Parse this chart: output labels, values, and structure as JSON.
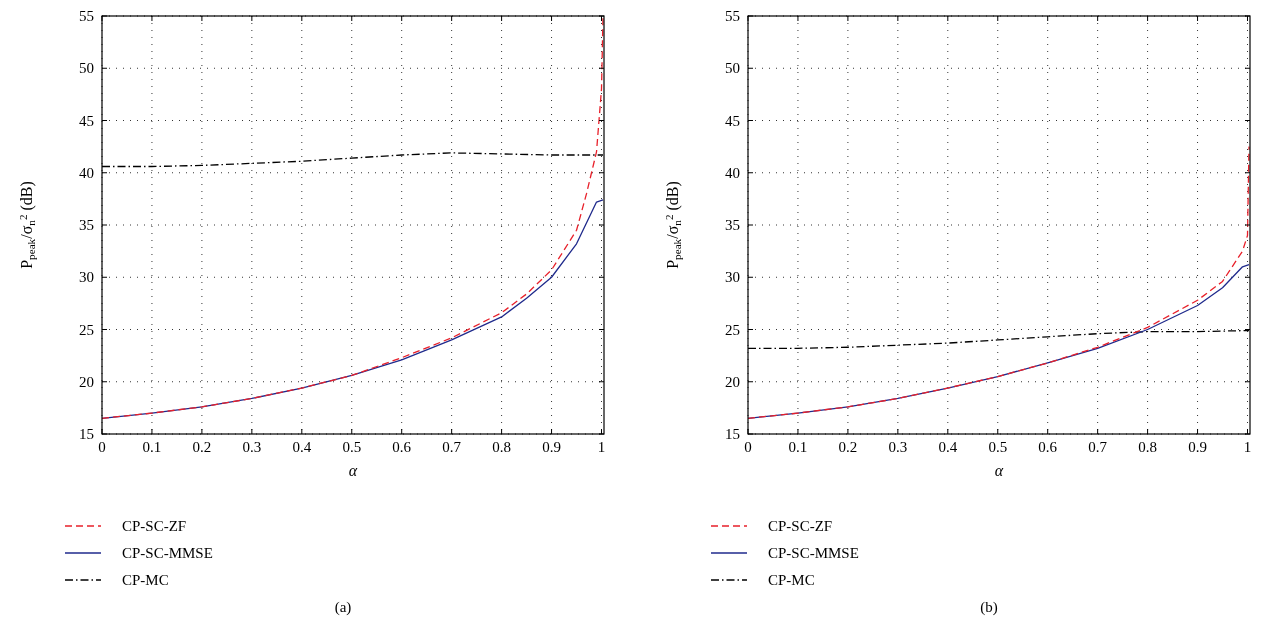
{
  "chart_data": [
    {
      "type": "line",
      "title": "(a)",
      "xlabel": "α",
      "ylabel": "P$_{peak}$/σ$_{n}$$^{2}$ (dB)",
      "xlim": [
        0,
        1.005
      ],
      "ylim": [
        15,
        55
      ],
      "xticks": [
        0,
        0.1,
        0.2,
        0.3,
        0.4,
        0.5,
        0.6,
        0.7,
        0.8,
        0.9,
        1
      ],
      "yticks": [
        15,
        20,
        25,
        30,
        35,
        40,
        45,
        50,
        55
      ],
      "grid": true,
      "legend": "bottom",
      "series": [
        {
          "name": "CP-SC-ZF",
          "color": "#e8202a",
          "line_style": "dashed",
          "x": [
            0,
            0.1,
            0.2,
            0.3,
            0.4,
            0.5,
            0.6,
            0.7,
            0.8,
            0.85,
            0.9,
            0.95,
            0.97,
            0.98,
            0.99,
            0.995,
            1.0,
            1.003
          ],
          "values": [
            16.5,
            17,
            17.6,
            18.4,
            19.4,
            20.6,
            22.3,
            24.2,
            26.6,
            28.4,
            30.7,
            34.5,
            38,
            40,
            42,
            45,
            48,
            55
          ]
        },
        {
          "name": "CP-SC-MMSE",
          "color": "#1f2a8c",
          "line_style": "solid",
          "x": [
            0,
            0.1,
            0.2,
            0.3,
            0.4,
            0.5,
            0.6,
            0.7,
            0.8,
            0.85,
            0.9,
            0.95,
            0.99,
            1.003
          ],
          "values": [
            16.5,
            17,
            17.6,
            18.4,
            19.4,
            20.6,
            22.1,
            24,
            26.2,
            28,
            30,
            33.2,
            37.2,
            37.4
          ]
        },
        {
          "name": "CP-MC",
          "color": "#000000",
          "line_style": "dashdot",
          "x": [
            0,
            0.1,
            0.2,
            0.3,
            0.4,
            0.5,
            0.6,
            0.7,
            0.8,
            0.9,
            1.003
          ],
          "values": [
            40.6,
            40.6,
            40.7,
            40.9,
            41.1,
            41.4,
            41.7,
            41.9,
            41.8,
            41.7,
            41.7
          ]
        }
      ]
    },
    {
      "type": "line",
      "title": "(b)",
      "xlabel": "α",
      "ylabel": "P$_{peak}$/σ$_{n}$$^{2}$ (dB)",
      "xlim": [
        0,
        1.005
      ],
      "ylim": [
        15,
        55
      ],
      "xticks": [
        0,
        0.1,
        0.2,
        0.3,
        0.4,
        0.5,
        0.6,
        0.7,
        0.8,
        0.9,
        1
      ],
      "yticks": [
        15,
        20,
        25,
        30,
        35,
        40,
        45,
        50,
        55
      ],
      "grid": true,
      "legend": "bottom",
      "series": [
        {
          "name": "CP-SC-ZF",
          "color": "#e8202a",
          "line_style": "dashed",
          "x": [
            0,
            0.1,
            0.2,
            0.3,
            0.4,
            0.5,
            0.6,
            0.7,
            0.8,
            0.9,
            0.95,
            0.99,
            1.0,
            1.003
          ],
          "values": [
            16.5,
            17,
            17.6,
            18.4,
            19.4,
            20.5,
            21.8,
            23.3,
            25.2,
            27.8,
            29.6,
            32.5,
            34,
            42.5
          ]
        },
        {
          "name": "CP-SC-MMSE",
          "color": "#1f2a8c",
          "line_style": "solid",
          "x": [
            0,
            0.1,
            0.2,
            0.3,
            0.4,
            0.5,
            0.6,
            0.7,
            0.8,
            0.9,
            0.95,
            0.99,
            1.003
          ],
          "values": [
            16.5,
            17,
            17.6,
            18.4,
            19.4,
            20.5,
            21.8,
            23.2,
            25,
            27.3,
            29,
            31,
            31.2
          ]
        },
        {
          "name": "CP-MC",
          "color": "#000000",
          "line_style": "dashdot",
          "x": [
            0,
            0.1,
            0.2,
            0.3,
            0.4,
            0.5,
            0.6,
            0.7,
            0.8,
            0.9,
            1.003
          ],
          "values": [
            23.2,
            23.2,
            23.3,
            23.5,
            23.7,
            24.0,
            24.3,
            24.6,
            24.8,
            24.8,
            24.9
          ]
        }
      ]
    }
  ]
}
